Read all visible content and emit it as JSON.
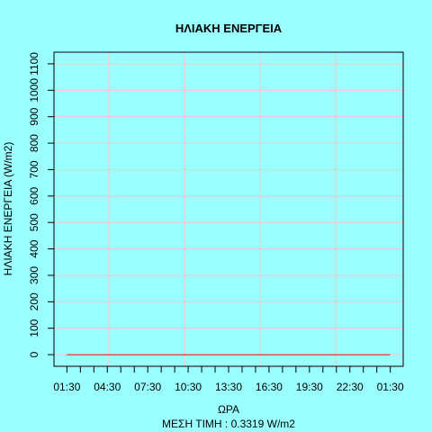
{
  "chart_data": {
    "type": "line",
    "title": "ΗΛΙΑΚΗ ΕΝΕΡΓΕΙΑ",
    "subtitle": "ΜΕΣΗ ΤΙΜΗ : 0.3319 W/m2",
    "x_label": "ΩΡΑ",
    "y_label": "ΗΛΙΑΚΗ ΕΝΕΡΓΕΙΑ (W/m2)",
    "categories": [
      "01:30",
      null,
      null,
      "04:30",
      null,
      null,
      "07:30",
      null,
      null,
      "10:30",
      null,
      null,
      "13:30",
      null,
      null,
      "16:30",
      null,
      null,
      "19:30",
      null,
      null,
      "22:30",
      null,
      null,
      "01:30"
    ],
    "values": [
      0,
      0,
      0,
      0,
      0,
      0,
      0,
      0,
      0,
      0,
      0,
      0,
      0,
      0,
      0,
      0,
      0,
      0,
      0,
      0,
      0,
      0,
      0,
      0,
      0
    ],
    "color": "#ff0000",
    "ylim": [
      -44,
      1144
    ],
    "yticks": [
      0,
      100,
      200,
      300,
      400,
      500,
      600,
      700,
      800,
      900,
      1000,
      1100
    ],
    "grid": true
  }
}
